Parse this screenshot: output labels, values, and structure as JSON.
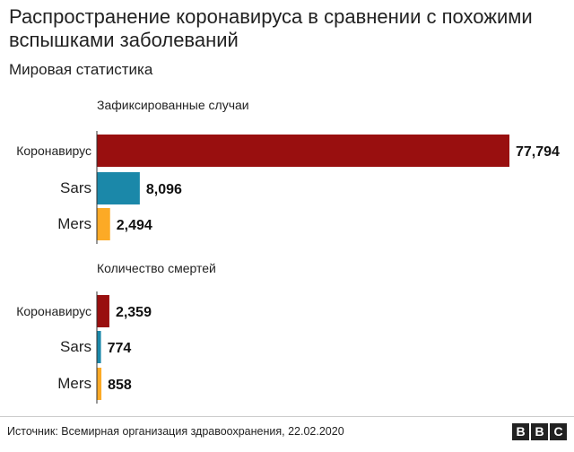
{
  "header": {
    "title": "Распространение коронавируса в сравнении с похожими вспышками заболеваний",
    "subtitle": "Мировая статистика"
  },
  "chart_data": [
    {
      "type": "bar",
      "orientation": "horizontal",
      "title": "Зафиксированные случаи",
      "categories": [
        "Коронавирус",
        "Sars",
        "Mers"
      ],
      "values": [
        77794,
        8096,
        2494
      ],
      "labels": [
        "77,794",
        "8,096",
        "2,494"
      ],
      "colors": [
        "#990f0f",
        "#1b88a9",
        "#fcaa26"
      ],
      "xlim": [
        0,
        77794
      ]
    },
    {
      "type": "bar",
      "orientation": "horizontal",
      "title": "Количество смертей",
      "categories": [
        "Коронавирус",
        "Sars",
        "Mers"
      ],
      "values": [
        2359,
        774,
        858
      ],
      "labels": [
        "2,359",
        "774",
        "858"
      ],
      "colors": [
        "#990f0f",
        "#1b88a9",
        "#fcaa26"
      ],
      "xlim": [
        0,
        77794
      ]
    }
  ],
  "footer": {
    "source": "Источник: Всемирная организация здравоохранения, 22.02.2020",
    "logo": [
      "B",
      "B",
      "C"
    ]
  }
}
